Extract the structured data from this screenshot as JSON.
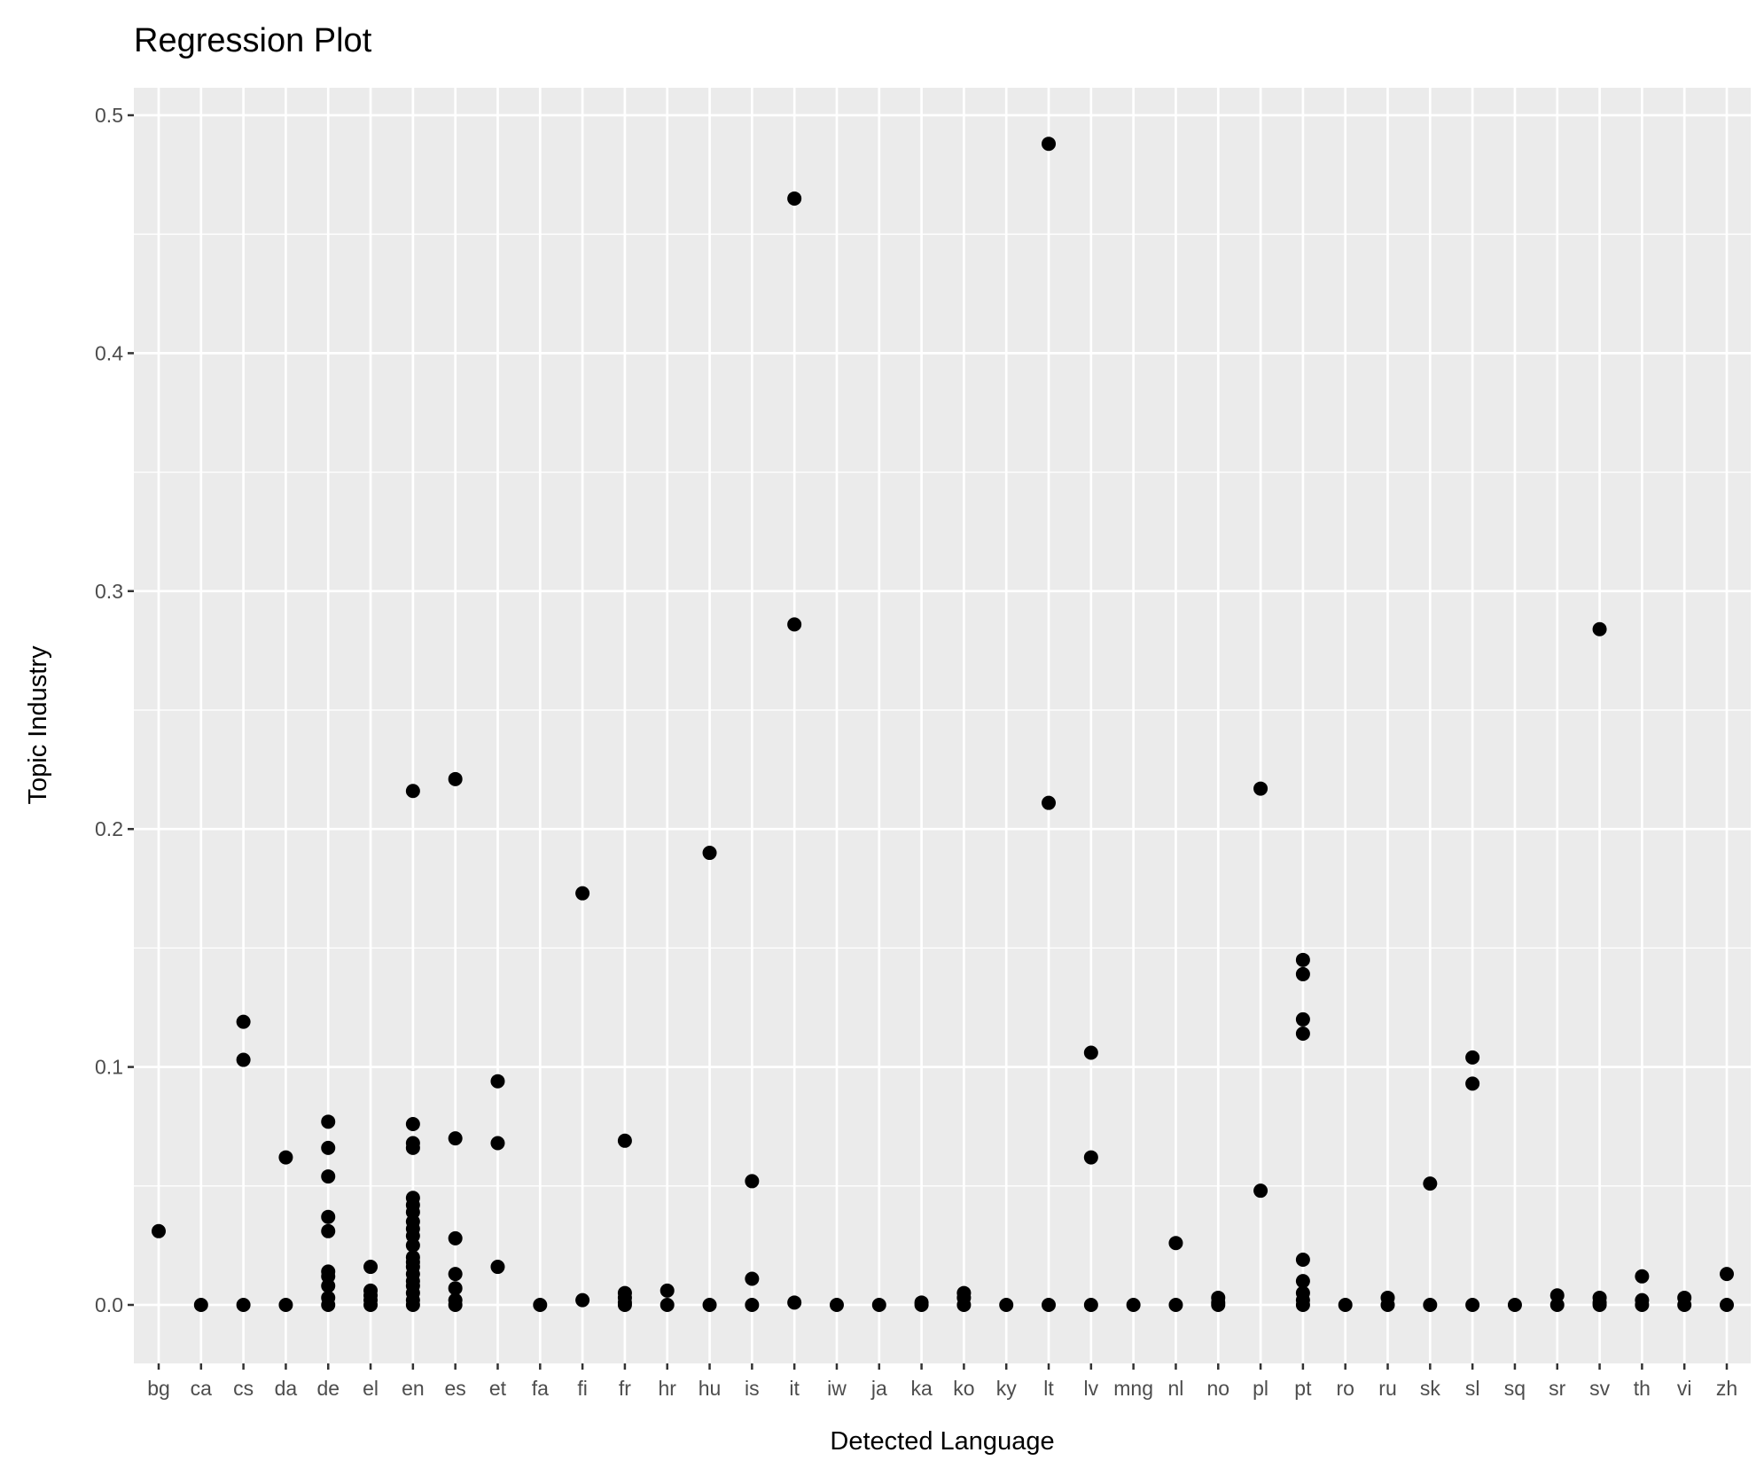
{
  "chart_data": {
    "type": "scatter",
    "title": "Regression Plot",
    "xlabel": "Detected Language",
    "ylabel": "Topic Industry",
    "ylim": [
      -0.025,
      0.511
    ],
    "yticks": [
      "0.0",
      "0.1",
      "0.2",
      "0.3",
      "0.4",
      "0.5"
    ],
    "ytick_values": [
      0,
      0.1,
      0.2,
      0.3,
      0.4,
      0.5
    ],
    "grid": true,
    "colors": {
      "panel": "#ebebeb",
      "grid": "#ffffff",
      "point": "#000000"
    },
    "categories": [
      "bg",
      "ca",
      "cs",
      "da",
      "de",
      "el",
      "en",
      "es",
      "et",
      "fa",
      "fi",
      "fr",
      "hr",
      "hu",
      "is",
      "it",
      "iw",
      "ja",
      "ka",
      "ko",
      "ky",
      "lt",
      "lv",
      "mng",
      "nl",
      "no",
      "pl",
      "pt",
      "ro",
      "ru",
      "sk",
      "sl",
      "sq",
      "sr",
      "sv",
      "th",
      "vi",
      "zh"
    ],
    "points": {
      "bg": [
        0.031
      ],
      "ca": [
        0
      ],
      "cs": [
        0.119,
        0.103,
        0
      ],
      "da": [
        0.062,
        0
      ],
      "de": [
        0.077,
        0.066,
        0.054,
        0.037,
        0.031,
        0.014,
        0.012,
        0.008,
        0.003,
        0
      ],
      "el": [
        0.016,
        0.006,
        0.004,
        0.002,
        0
      ],
      "en": [
        0.216,
        0.076,
        0.068,
        0.066,
        0.045,
        0.042,
        0.039,
        0.035,
        0.032,
        0.029,
        0.025,
        0.02,
        0.018,
        0.016,
        0.013,
        0.01,
        0.008,
        0.005,
        0.002,
        0
      ],
      "es": [
        0.221,
        0.07,
        0.028,
        0.013,
        0.007,
        0.002,
        0
      ],
      "et": [
        0.094,
        0.068,
        0.016
      ],
      "fa": [
        0
      ],
      "fi": [
        0.173,
        0.002
      ],
      "fr": [
        0.069,
        0.005,
        0.003,
        0.001,
        0
      ],
      "hr": [
        0.006,
        0
      ],
      "hu": [
        0.19,
        0
      ],
      "is": [
        0.052,
        0.011,
        0
      ],
      "it": [
        0.465,
        0.286,
        0.001
      ],
      "iw": [
        0
      ],
      "ja": [
        0
      ],
      "ka": [
        0.001,
        0
      ],
      "ko": [
        0.005,
        0.003,
        0
      ],
      "ky": [
        0
      ],
      "lt": [
        0.488,
        0.211,
        0
      ],
      "lv": [
        0.106,
        0.062,
        0
      ],
      "mng": [
        0
      ],
      "nl": [
        0.026,
        0
      ],
      "no": [
        0.003,
        0.001,
        0
      ],
      "pl": [
        0.217,
        0.048
      ],
      "pt": [
        0.145,
        0.139,
        0.12,
        0.114,
        0.019,
        0.01,
        0.005,
        0.002,
        0
      ],
      "ro": [
        0
      ],
      "ru": [
        0.003,
        0
      ],
      "sk": [
        0.051,
        0
      ],
      "sl": [
        0.104,
        0.093,
        0
      ],
      "sq": [
        0
      ],
      "sr": [
        0.004,
        0
      ],
      "sv": [
        0.284,
        0.003,
        0.001,
        0
      ],
      "th": [
        0.012,
        0.002,
        0
      ],
      "vi": [
        0.003,
        0
      ],
      "zh": [
        0.013,
        0
      ]
    }
  }
}
